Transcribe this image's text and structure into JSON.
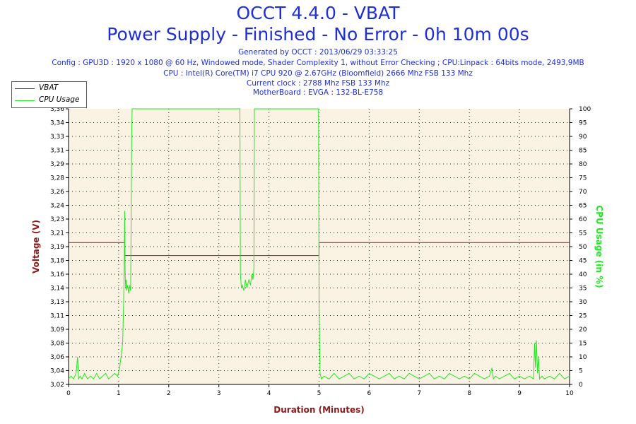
{
  "header": {
    "title_line1": "OCCT 4.4.0 - VBAT",
    "title_line2": "Power Supply - Finished - No Error - 0h 10m 00s",
    "info_lines": [
      "Generated by OCCT : 2013/06/29 03:33:25",
      "Config : GPU3D : 1920 x 1080 @ 60 Hz, Windowed mode, Shader Complexity 1, without Error Checking ; CPU:Linpack : 64bits mode, 2493,9MB",
      "CPU : Intel(R) Core(TM) i7 CPU 920 @ 2.67GHz (Bloomfield) 2666 Mhz FSB 133 Mhz",
      "Current clock : 2788 Mhz FSB 133 Mhz",
      "MotherBoard : EVGA : 132-BL-E758"
    ]
  },
  "colors": {
    "title": "#1f2fd6",
    "voltage": "#8b1a1a",
    "cpu": "#22e622",
    "plot_bg": "#faf3e4",
    "grid": "#222222"
  },
  "chart_data": {
    "type": "line",
    "xlabel": "Duration (Minutes)",
    "ylabel_left": "Voltage (V)",
    "ylabel_right": "CPU Usage (in %)",
    "xlim": [
      0,
      10
    ],
    "ylim_left": [
      3.02,
      3.36
    ],
    "ylim_right": [
      0,
      100
    ],
    "x_ticks": [
      "0",
      "1",
      "2",
      "3",
      "4",
      "5",
      "6",
      "7",
      "8",
      "9",
      "10"
    ],
    "y_left_ticks": [
      "3,02",
      "3,04",
      "3,06",
      "3,08",
      "3,09",
      "3,11",
      "3,13",
      "3,14",
      "3,16",
      "3,18",
      "3,19",
      "3,21",
      "3,23",
      "3,24",
      "3,26",
      "3,28",
      "3,29",
      "3,31",
      "3,33",
      "3,34",
      "3,36"
    ],
    "y_right_ticks": [
      "0",
      "5",
      "10",
      "15",
      "20",
      "25",
      "30",
      "35",
      "40",
      "45",
      "50",
      "55",
      "60",
      "65",
      "70",
      "75",
      "80",
      "85",
      "90",
      "95",
      "100"
    ],
    "grid": true,
    "legend_position": "top-left",
    "series": [
      {
        "name": "VBAT",
        "axis": "left",
        "x": [
          0,
          1.12,
          1.12,
          5.0,
          5.0,
          10
        ],
        "y": [
          3.195,
          3.195,
          3.179,
          3.179,
          3.195,
          3.195
        ]
      },
      {
        "name": "CPU Usage",
        "axis": "right",
        "x": [
          0,
          0.05,
          0.1,
          0.15,
          0.18,
          0.2,
          0.23,
          0.27,
          0.32,
          0.38,
          0.44,
          0.5,
          0.56,
          0.62,
          0.68,
          0.74,
          0.8,
          0.86,
          0.92,
          0.98,
          1.02,
          1.06,
          1.08,
          1.1,
          1.11,
          1.12,
          1.13,
          1.14,
          1.15,
          1.16,
          1.18,
          1.2,
          1.22,
          1.24,
          1.26,
          1.27,
          1.28,
          2.0,
          3.0,
          3.42,
          3.43,
          3.45,
          3.47,
          3.5,
          3.53,
          3.56,
          3.6,
          3.63,
          3.66,
          3.68,
          3.7,
          3.71,
          4.0,
          4.99,
          5.0,
          5.02,
          5.05,
          5.1,
          5.2,
          5.3,
          5.4,
          5.5,
          5.6,
          5.7,
          5.8,
          5.9,
          6.0,
          6.1,
          6.2,
          6.3,
          6.4,
          6.5,
          6.6,
          6.7,
          6.8,
          6.9,
          7.0,
          7.1,
          7.2,
          7.3,
          7.4,
          7.5,
          7.6,
          7.7,
          7.8,
          7.9,
          8.0,
          8.1,
          8.2,
          8.3,
          8.4,
          8.45,
          8.48,
          8.52,
          8.6,
          8.7,
          8.8,
          8.9,
          9.0,
          9.1,
          9.2,
          9.28,
          9.3,
          9.32,
          9.34,
          9.36,
          9.38,
          9.4,
          9.45,
          9.5,
          9.6,
          9.7,
          9.8,
          9.9,
          10
        ],
        "y": [
          2,
          3,
          2,
          4,
          10,
          2,
          3,
          2,
          4,
          2,
          3,
          2,
          4,
          2,
          3,
          4,
          2,
          3,
          4,
          3,
          6,
          12,
          15,
          30,
          42,
          63,
          40,
          35,
          38,
          34,
          36,
          33,
          36,
          34,
          90,
          100,
          100,
          100,
          100,
          100,
          40,
          35,
          36,
          34,
          38,
          35,
          38,
          36,
          40,
          38,
          42,
          100,
          100,
          100,
          30,
          4,
          2,
          3,
          2,
          4,
          2,
          3,
          4,
          2,
          3,
          2,
          4,
          3,
          2,
          3,
          4,
          2,
          3,
          2,
          4,
          3,
          2,
          3,
          4,
          2,
          3,
          2,
          4,
          3,
          2,
          3,
          2,
          4,
          3,
          2,
          3,
          6,
          2,
          3,
          2,
          3,
          4,
          2,
          3,
          2,
          3,
          2,
          15,
          6,
          16,
          4,
          10,
          2,
          3,
          2,
          3,
          2,
          4,
          2,
          3
        ]
      }
    ]
  }
}
